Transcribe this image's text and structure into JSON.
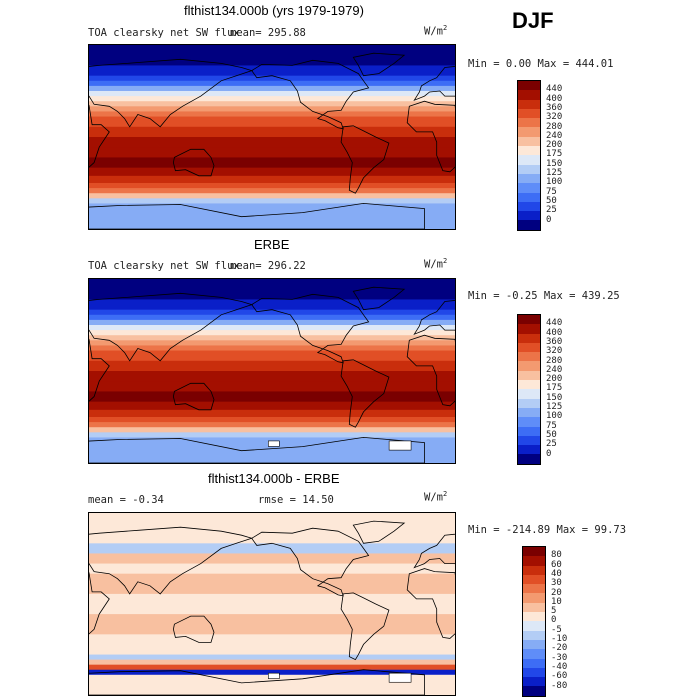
{
  "season": "DJF",
  "panels": [
    {
      "title": "flthist134.000b (yrs 1979-1979)",
      "subtitle": "TOA clearsky net SW flux",
      "mean": "mean= 295.88",
      "units": "W/m",
      "units_exp": "2",
      "minmax": "Min =    0.00 Max = 444.01",
      "kind": "abs"
    },
    {
      "title": "ERBE",
      "subtitle": "TOA clearsky net SW flux",
      "mean": "mean= 296.22",
      "units": "W/m",
      "units_exp": "2",
      "minmax": "Min =  -0.25 Max = 439.25",
      "kind": "abs"
    },
    {
      "title": "flthist134.000b - ERBE",
      "subtitle": "mean =  -0.34",
      "mean": "rmse =  14.50",
      "units": "W/m",
      "units_exp": "2",
      "minmax": "Min = -214.89 Max =  99.73",
      "kind": "diff"
    }
  ],
  "chart_data": [
    {
      "type": "heatmap",
      "title": "flthist134.000b (yrs 1979-1979)",
      "variable": "TOA clearsky net SW flux",
      "units": "W/m2",
      "mean": 295.88,
      "min": 0.0,
      "max": 444.01,
      "colorbar_levels": [
        0,
        25,
        50,
        75,
        100,
        125,
        150,
        175,
        200,
        240,
        280,
        320,
        360,
        400,
        440
      ]
    },
    {
      "type": "heatmap",
      "title": "ERBE",
      "variable": "TOA clearsky net SW flux",
      "units": "W/m2",
      "mean": 296.22,
      "min": -0.25,
      "max": 439.25,
      "colorbar_levels": [
        0,
        25,
        50,
        75,
        100,
        125,
        150,
        175,
        200,
        240,
        280,
        320,
        360,
        400,
        440
      ]
    },
    {
      "type": "heatmap",
      "title": "flthist134.000b - ERBE",
      "units": "W/m2",
      "mean": -0.34,
      "rmse": 14.5,
      "min": -214.89,
      "max": 99.73,
      "colorbar_levels": [
        -80,
        -60,
        -40,
        -30,
        -20,
        -10,
        -5,
        0,
        5,
        10,
        20,
        30,
        40,
        60,
        80
      ]
    }
  ],
  "colors": {
    "abs": [
      "#000080",
      "#0a1fc8",
      "#2147e8",
      "#3d6df5",
      "#5f8df8",
      "#86acf5",
      "#b3cdf5",
      "#dde8f7",
      "#fde8d8",
      "#f8c0a0",
      "#f39a70",
      "#ec7448",
      "#e14f26",
      "#c92e0c",
      "#a30f00",
      "#7a0000"
    ],
    "diff": [
      "#000080",
      "#0a1fc8",
      "#2147e8",
      "#3d6df5",
      "#5f8df8",
      "#86acf5",
      "#b3cdf5",
      "#dde8f7",
      "#fde8d8",
      "#f8c0a0",
      "#f39a70",
      "#ec7448",
      "#e14f26",
      "#c92e0c",
      "#a30f00",
      "#7a0000"
    ]
  }
}
